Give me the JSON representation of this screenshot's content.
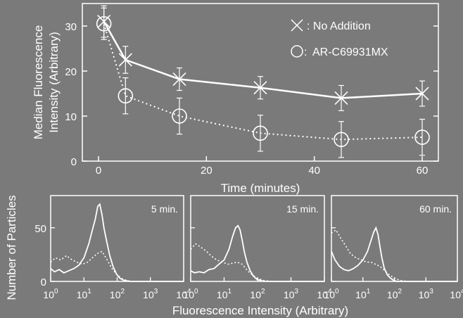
{
  "chart_data": [
    {
      "type": "line",
      "ylabel_line1": "Median Fluorescence",
      "ylabel_line2": "Intensity (Arbitrary)",
      "xlabel": "Time (minutes)",
      "xlim": [
        -3,
        63
      ],
      "ylim": [
        0,
        35
      ],
      "xticks": [
        0,
        20,
        40,
        60
      ],
      "yticks": [
        0,
        10,
        20,
        30
      ],
      "legend_position": "top-right",
      "series": [
        {
          "name": ": No Addition",
          "marker": "x",
          "line": "solid",
          "x": [
            1,
            5,
            15,
            30,
            45,
            60
          ],
          "y": [
            31,
            22.5,
            18.2,
            16.3,
            14,
            15
          ],
          "err": [
            3.5,
            3,
            2.5,
            2.5,
            2.8,
            2.8
          ]
        },
        {
          "name": "AR-C69931MX",
          "marker": "circle",
          "line": "dotted",
          "x": [
            1,
            5,
            15,
            30,
            45,
            60
          ],
          "y": [
            30.5,
            14.5,
            10,
            6.2,
            4.8,
            5.3
          ],
          "err": [
            3.5,
            4,
            4,
            4,
            4,
            4
          ]
        }
      ]
    },
    {
      "type": "line",
      "ylabel": "Number of Particles",
      "xlabel": "Fluorescence Intensity (Arbitrary)",
      "xscale": "log",
      "xlim": [
        1,
        10000
      ],
      "ylim": [
        0,
        80
      ],
      "yticks": [
        0,
        50
      ],
      "xtick_base": "10",
      "xtick_exponents": [
        "0",
        "1",
        "2",
        "3",
        "4"
      ],
      "panels": [
        {
          "label": "5 min.",
          "solid": {
            "x": [
              1,
              1.3,
              1.8,
              2.5,
              3.5,
              5,
              7,
              10,
              14,
              18,
              22,
              26,
              30,
              35,
              40,
              48,
              60,
              75,
              95,
              120,
              160,
              250,
              10000
            ],
            "y": [
              12,
              9,
              11,
              8,
              10,
              12,
              15,
              22,
              35,
              48,
              58,
              70,
              72,
              62,
              50,
              38,
              24,
              14,
              7,
              3,
              1,
              0,
              0
            ]
          },
          "dotted": {
            "x": [
              1,
              1.4,
              2,
              3,
              4,
              6,
              9,
              13,
              18,
              25,
              35,
              50,
              70,
              100,
              150,
              250,
              10000
            ],
            "y": [
              18,
              22,
              20,
              24,
              21,
              18,
              16,
              18,
              22,
              26,
              28,
              20,
              12,
              6,
              2,
              0,
              0
            ]
          }
        },
        {
          "label": "15 min.",
          "solid": {
            "x": [
              1,
              1.3,
              1.8,
              2.5,
              3.5,
              5,
              7,
              10,
              14,
              18,
              22,
              26,
              30,
              35,
              40,
              48,
              60,
              75,
              95,
              120,
              160,
              250,
              10000
            ],
            "y": [
              10,
              8,
              9,
              8,
              11,
              12,
              16,
              20,
              30,
              42,
              50,
              52,
              48,
              38,
              28,
              18,
              10,
              5,
              2,
              1,
              0,
              0,
              0
            ]
          },
          "dotted": {
            "x": [
              1,
              1.4,
              2,
              3,
              4,
              6,
              9,
              13,
              18,
              25,
              35,
              50,
              70,
              100,
              150,
              250,
              10000
            ],
            "y": [
              30,
              35,
              32,
              28,
              24,
              20,
              18,
              16,
              17,
              18,
              16,
              10,
              6,
              3,
              1,
              0,
              0
            ]
          }
        },
        {
          "label": "60 min.",
          "solid": {
            "x": [
              1,
              1.3,
              1.8,
              2.5,
              3.5,
              5,
              7,
              10,
              14,
              18,
              22,
              26,
              30,
              35,
              40,
              48,
              60,
              75,
              95,
              120,
              160,
              250,
              10000
            ],
            "y": [
              28,
              20,
              14,
              11,
              10,
              12,
              15,
              20,
              28,
              38,
              46,
              50,
              44,
              32,
              22,
              12,
              6,
              3,
              1,
              0,
              0,
              0,
              0
            ]
          },
          "dotted": {
            "x": [
              1,
              1.4,
              2,
              3,
              4,
              6,
              9,
              13,
              18,
              25,
              35,
              50,
              70,
              100,
              150,
              250,
              10000
            ],
            "y": [
              45,
              48,
              40,
              32,
              26,
              22,
              20,
              18,
              18,
              16,
              14,
              10,
              6,
              3,
              1,
              0,
              0
            ]
          }
        }
      ]
    }
  ]
}
